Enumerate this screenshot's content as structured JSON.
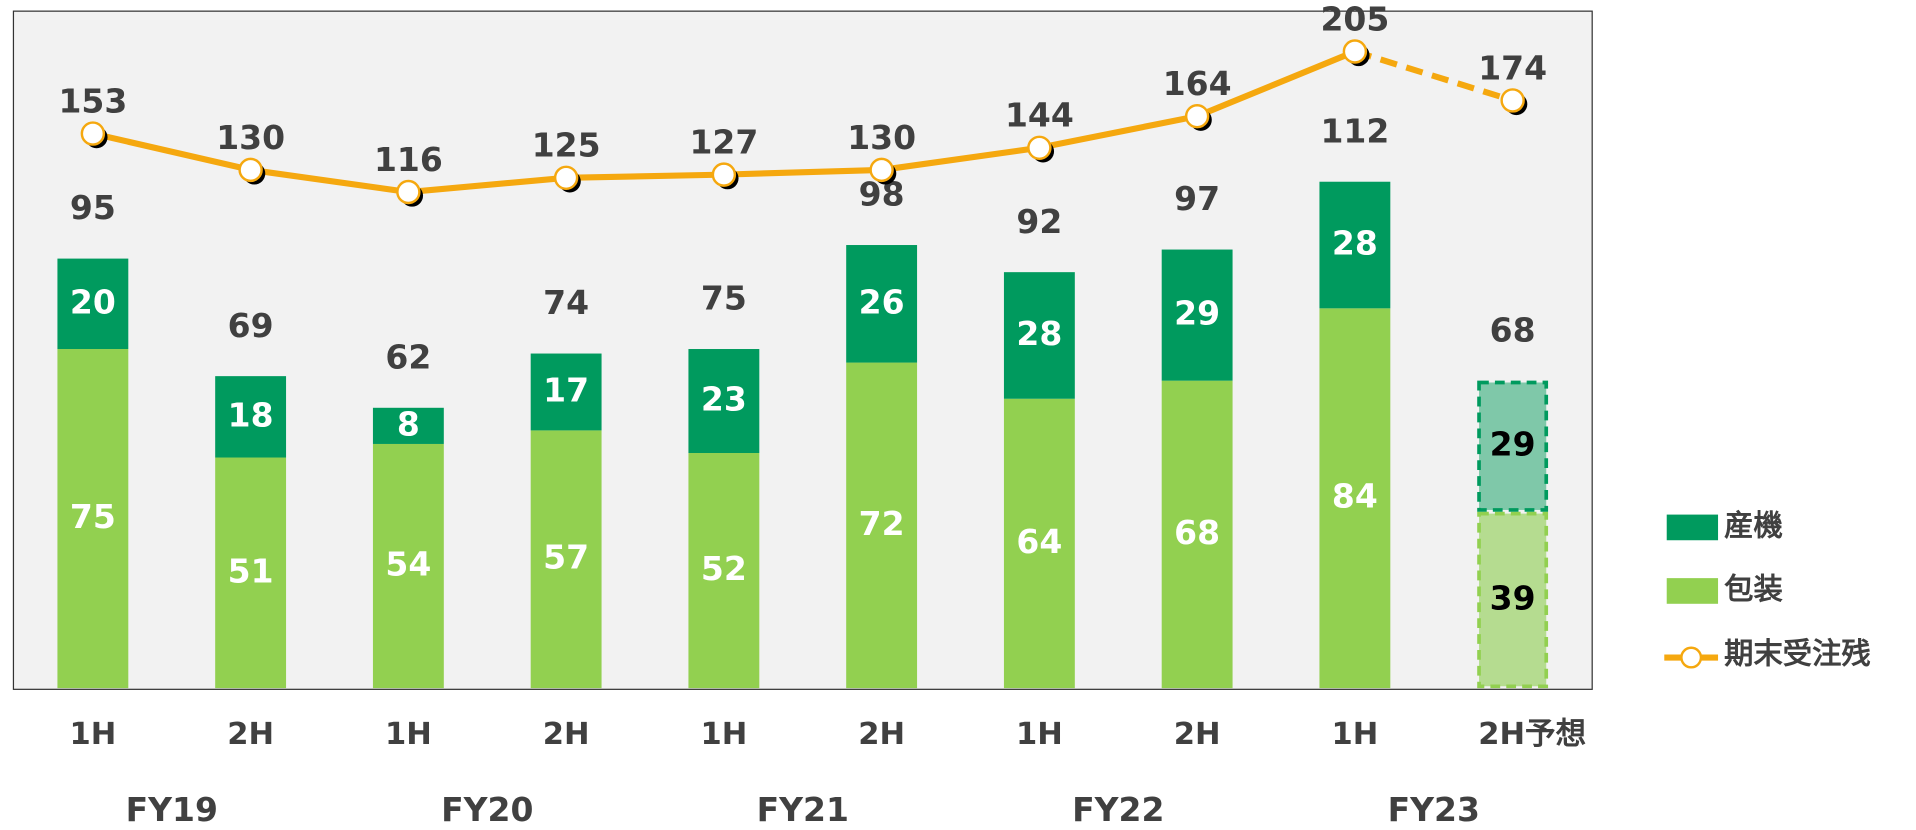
{
  "chart_data": {
    "type": "bar",
    "categories": [
      "1H",
      "2H",
      "1H",
      "2H",
      "1H",
      "2H",
      "1H",
      "2H",
      "1H",
      "2H予想"
    ],
    "groups": [
      "FY19",
      "FY20",
      "FY21",
      "FY22",
      "FY23"
    ],
    "stacked": true,
    "forecast": [
      false,
      false,
      false,
      false,
      false,
      false,
      false,
      false,
      false,
      true
    ],
    "series": [
      {
        "name": "包装",
        "color": "#92d050",
        "forecast_color": "#b5dc90",
        "values": [
          75,
          51,
          54,
          57,
          52,
          72,
          64,
          68,
          84,
          39
        ]
      },
      {
        "name": "産機",
        "color": "#009a5e",
        "forecast_color": "#7fc8a9",
        "values": [
          20,
          18,
          8,
          17,
          23,
          26,
          28,
          29,
          28,
          29
        ]
      }
    ],
    "totals": [
      95,
      69,
      62,
      74,
      75,
      98,
      92,
      97,
      112,
      68
    ],
    "line": {
      "name": "期末受注残",
      "color": "#f5a80f",
      "values": [
        153,
        130,
        116,
        125,
        127,
        130,
        144,
        164,
        205,
        174
      ]
    }
  }
}
